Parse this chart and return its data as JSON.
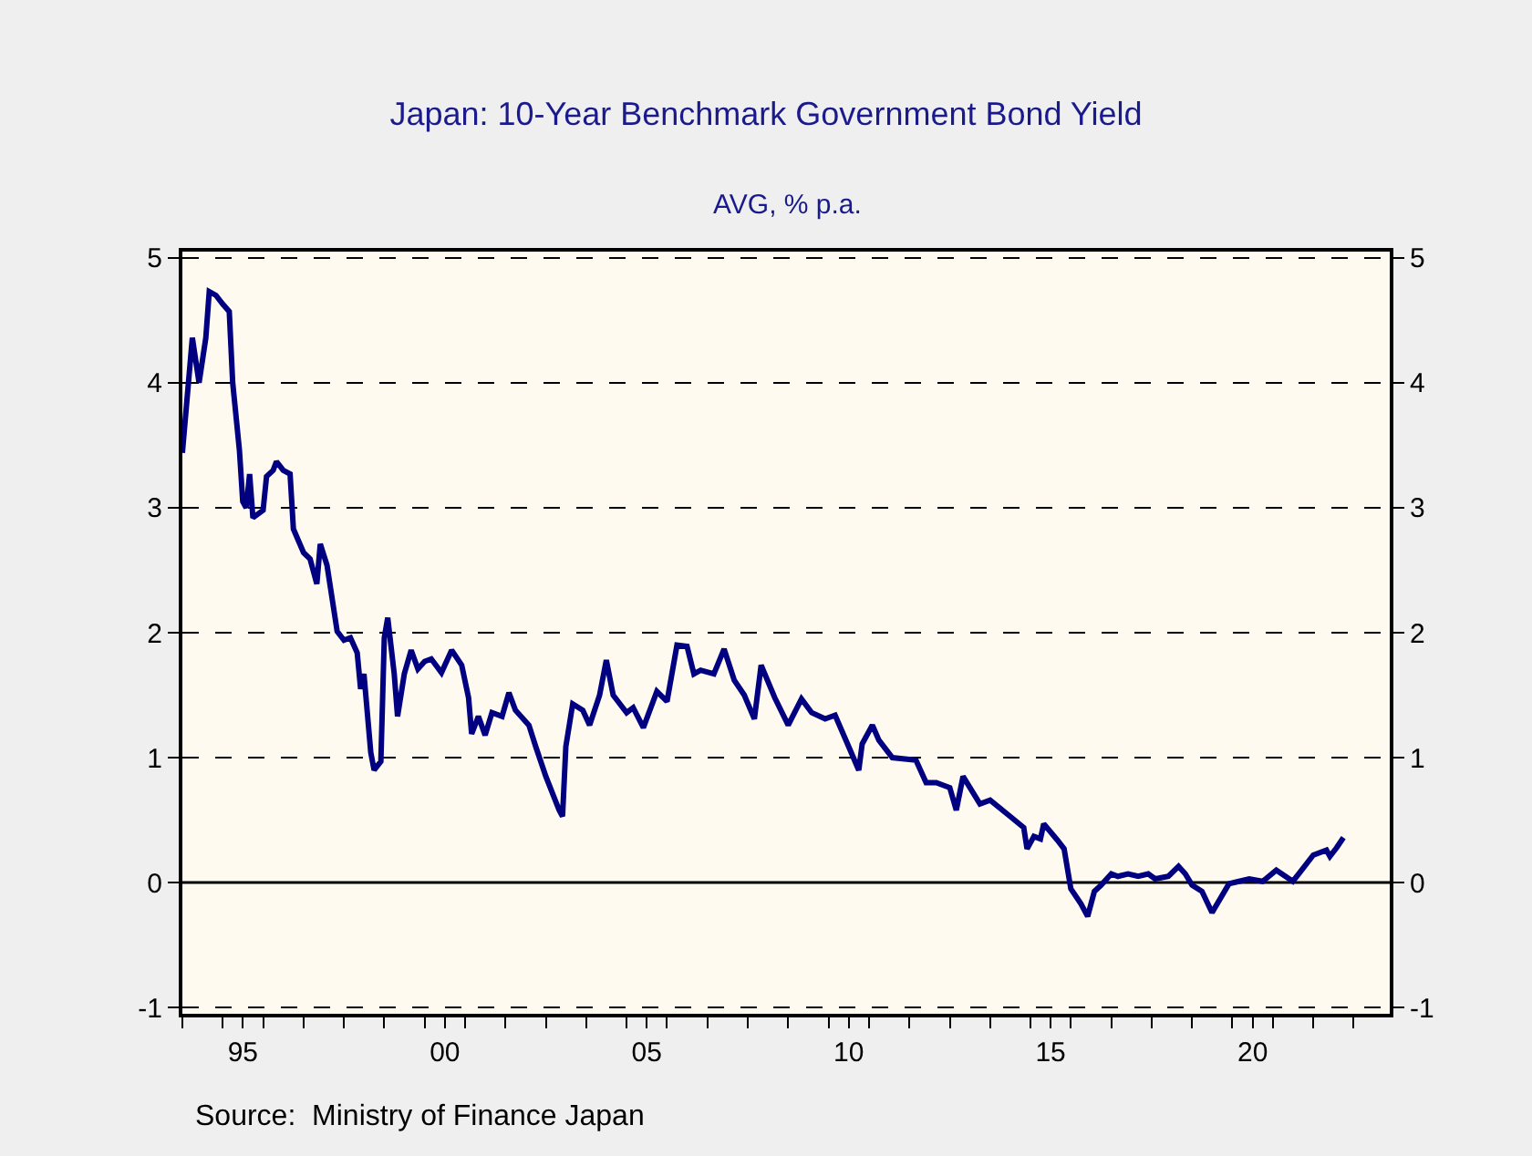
{
  "chart_data": {
    "type": "line",
    "title": "Japan: 10-Year Benchmark Government Bond Yield",
    "subtitle": "AVG, % p.a.",
    "annotations": [
      "Source:  Ministry of Finance Japan"
    ],
    "series": [
      {
        "color": "#000080",
        "x": [
          "1994-01",
          "1994-04",
          "1994-06",
          "1994-08",
          "1994-09",
          "1994-11",
          "1995-01",
          "1995-03",
          "1995-04",
          "1995-06",
          "1995-07",
          "1995-08",
          "1995-09",
          "1995-10",
          "1996-01",
          "1996-02",
          "1996-04",
          "1996-05",
          "1996-07",
          "1996-09",
          "1996-10",
          "1997-01",
          "1997-03",
          "1997-05",
          "1997-06",
          "1997-08",
          "1997-11",
          "1998-01",
          "1998-03",
          "1998-05",
          "1998-06",
          "1998-07",
          "1998-09",
          "1998-10",
          "1998-12",
          "1999-01",
          "1999-02",
          "1999-04",
          "1999-05",
          "1999-07",
          "1999-09",
          "1999-11",
          "2000-01",
          "2000-03",
          "2000-06",
          "2000-09",
          "2000-12",
          "2001-02",
          "2001-03",
          "2001-05",
          "2001-07",
          "2001-09",
          "2001-12",
          "2002-02",
          "2002-04",
          "2002-08",
          "2002-10",
          "2003-01",
          "2003-05",
          "2003-06",
          "2003-07",
          "2003-09",
          "2003-12",
          "2004-02",
          "2004-05",
          "2004-07",
          "2004-09",
          "2005-01",
          "2005-03",
          "2005-06",
          "2005-10",
          "2006-01",
          "2006-04",
          "2006-07",
          "2006-09",
          "2006-11",
          "2007-03",
          "2007-06",
          "2007-09",
          "2007-12",
          "2008-03",
          "2008-05",
          "2008-09",
          "2009-01",
          "2009-05",
          "2009-08",
          "2009-12",
          "2010-03",
          "2010-07",
          "2010-10",
          "2010-11",
          "2011-02",
          "2011-04",
          "2011-08",
          "2012-03",
          "2012-06",
          "2012-09",
          "2013-01",
          "2013-03",
          "2013-05",
          "2013-10",
          "2014-01",
          "2014-07",
          "2014-11",
          "2014-12",
          "2015-02",
          "2015-04",
          "2015-05",
          "2015-09",
          "2015-11",
          "2016-01",
          "2016-04",
          "2016-06",
          "2016-08",
          "2016-10",
          "2017-01",
          "2017-03",
          "2017-06",
          "2017-09",
          "2017-12",
          "2018-02",
          "2018-06",
          "2018-09",
          "2018-11",
          "2019-01",
          "2019-04",
          "2019-07",
          "2019-12",
          "2020-03",
          "2020-06",
          "2020-10",
          "2021-02",
          "2021-07",
          "2021-09",
          "2022-01",
          "2022-05",
          "2022-06",
          "2022-08",
          "2022-10"
        ],
        "values": [
          3.44,
          4.36,
          4.0,
          4.36,
          4.73,
          4.7,
          4.63,
          4.57,
          4.0,
          3.46,
          3.05,
          3.0,
          3.27,
          2.92,
          2.98,
          3.25,
          3.3,
          3.37,
          3.3,
          3.27,
          2.83,
          2.64,
          2.59,
          2.39,
          2.71,
          2.54,
          2.01,
          1.94,
          1.96,
          1.84,
          1.55,
          1.67,
          1.04,
          0.9,
          0.97,
          1.96,
          2.12,
          1.67,
          1.33,
          1.67,
          1.86,
          1.71,
          1.77,
          1.79,
          1.68,
          1.86,
          1.74,
          1.48,
          1.19,
          1.33,
          1.18,
          1.36,
          1.33,
          1.52,
          1.38,
          1.26,
          1.09,
          0.85,
          0.58,
          0.53,
          1.09,
          1.43,
          1.38,
          1.26,
          1.5,
          1.78,
          1.5,
          1.36,
          1.4,
          1.24,
          1.53,
          1.45,
          1.9,
          1.89,
          1.67,
          1.7,
          1.67,
          1.87,
          1.62,
          1.5,
          1.31,
          1.74,
          1.48,
          1.26,
          1.47,
          1.36,
          1.31,
          1.34,
          1.09,
          0.9,
          1.11,
          1.26,
          1.14,
          1.0,
          0.98,
          0.8,
          0.8,
          0.76,
          0.58,
          0.85,
          0.63,
          0.66,
          0.53,
          0.44,
          0.27,
          0.37,
          0.35,
          0.47,
          0.34,
          0.27,
          -0.05,
          -0.17,
          -0.27,
          -0.07,
          -0.02,
          0.07,
          0.05,
          0.07,
          0.05,
          0.07,
          0.03,
          0.05,
          0.13,
          0.07,
          -0.02,
          -0.07,
          -0.24,
          -0.01,
          0.01,
          0.03,
          0.01,
          0.1,
          0.01,
          0.08,
          0.22,
          0.26,
          0.21,
          0.28,
          0.36
        ]
      }
    ],
    "xlim": [
      "1994-01-01",
      "2023-11-24"
    ],
    "xticks": [
      {
        "value": "1994-01-01",
        "label": null
      },
      {
        "value": "1995-01-01",
        "label": null
      },
      {
        "value": "1995-07-02",
        "label": "95"
      },
      {
        "value": "1996-01-01",
        "label": null
      },
      {
        "value": "1997-01-01",
        "label": null
      },
      {
        "value": "1998-01-01",
        "label": null
      },
      {
        "value": "1999-01-01",
        "label": null
      },
      {
        "value": "2000-01-01",
        "label": null
      },
      {
        "value": "2000-07-02",
        "label": "00"
      },
      {
        "value": "2001-01-01",
        "label": null
      },
      {
        "value": "2002-01-01",
        "label": null
      },
      {
        "value": "2003-01-01",
        "label": null
      },
      {
        "value": "2004-01-01",
        "label": null
      },
      {
        "value": "2005-01-01",
        "label": null
      },
      {
        "value": "2005-07-02",
        "label": "05"
      },
      {
        "value": "2006-01-01",
        "label": null
      },
      {
        "value": "2007-01-01",
        "label": null
      },
      {
        "value": "2008-01-01",
        "label": null
      },
      {
        "value": "2009-01-01",
        "label": null
      },
      {
        "value": "2010-01-01",
        "label": null
      },
      {
        "value": "2010-07-02",
        "label": "10"
      },
      {
        "value": "2011-01-01",
        "label": null
      },
      {
        "value": "2012-01-01",
        "label": null
      },
      {
        "value": "2013-01-01",
        "label": null
      },
      {
        "value": "2014-01-01",
        "label": null
      },
      {
        "value": "2015-01-01",
        "label": null
      },
      {
        "value": "2015-07-02",
        "label": "15"
      },
      {
        "value": "2016-01-01",
        "label": null
      },
      {
        "value": "2017-01-01",
        "label": null
      },
      {
        "value": "2018-01-01",
        "label": null
      },
      {
        "value": "2019-01-01",
        "label": null
      },
      {
        "value": "2020-01-01",
        "label": null
      },
      {
        "value": "2020-07-02",
        "label": "20"
      },
      {
        "value": "2021-01-01",
        "label": null
      },
      {
        "value": "2022-01-01",
        "label": null
      },
      {
        "value": "2023-01-01",
        "label": null
      }
    ],
    "ylim": [
      -1.05,
      5.05
    ],
    "yticks": [
      -1,
      0,
      1,
      2,
      3,
      4,
      5
    ],
    "y2lim": [
      -1.05,
      5.05
    ],
    "y2ticks": [
      -1,
      0,
      1,
      2,
      3,
      4,
      5
    ],
    "ref_lines": [
      {
        "axis": "y",
        "value": 0,
        "color": "#000000"
      }
    ],
    "grid": "y",
    "marker": "none",
    "line_style": "solid"
  }
}
